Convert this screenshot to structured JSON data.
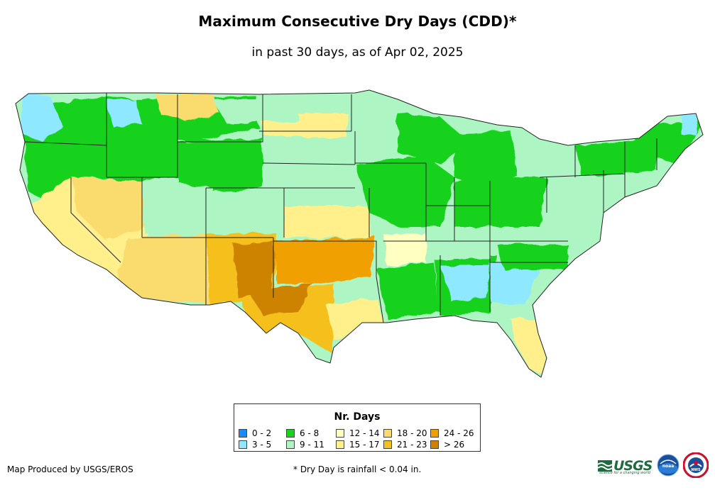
{
  "header": {
    "title": "Maximum Consecutive Dry Days (CDD)*",
    "subtitle": "in past 30 days, as of Apr 02, 2025"
  },
  "legend": {
    "title": "Nr. Days",
    "items": [
      {
        "label": "0 - 2",
        "color": "#1a8cff"
      },
      {
        "label": "3 - 5",
        "color": "#8ee8ff"
      },
      {
        "label": "6 - 8",
        "color": "#19d21a"
      },
      {
        "label": "9 - 11",
        "color": "#adf5c2"
      },
      {
        "label": "12 - 14",
        "color": "#ffffc2"
      },
      {
        "label": "15 - 17",
        "color": "#fff08c"
      },
      {
        "label": "18 - 20",
        "color": "#fadb6e"
      },
      {
        "label": "21 - 23",
        "color": "#f5bf1e"
      },
      {
        "label": "24 - 26",
        "color": "#f0a000"
      },
      {
        "label": "> 26",
        "color": "#cd8200"
      }
    ]
  },
  "footer": {
    "credit": "Map Produced by USGS/EROS",
    "footnote": "* Dry Day is rainfall < 0.04 in.",
    "logos": {
      "usgs": "USGS",
      "usgs_tagline": "science for a changing world",
      "noaa": "noaa",
      "nws": "NWS"
    }
  },
  "colors": {
    "state_border": "#222222",
    "water": "#ffffff"
  }
}
